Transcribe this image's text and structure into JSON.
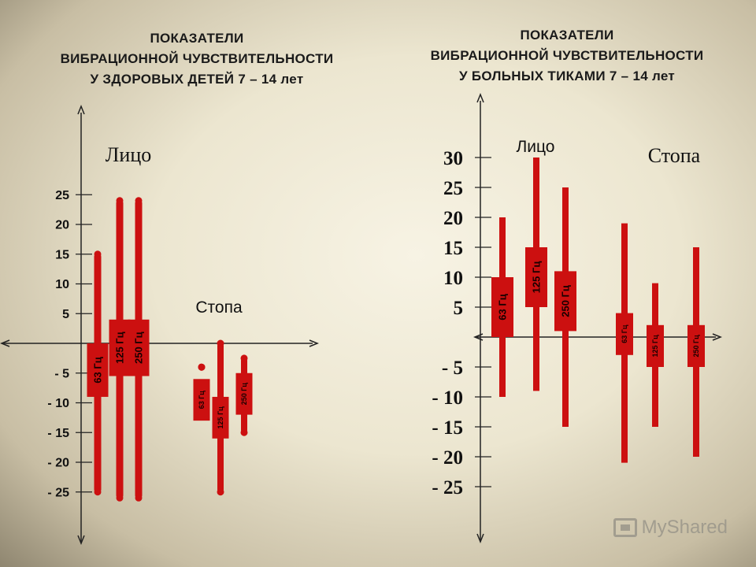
{
  "titles": {
    "left": [
      "ПОКАЗАТЕЛИ",
      "ВИБРАЦИОННОЙ ЧУВСТВИТЕЛЬНОСТИ",
      "У ЗДОРОВЫХ ДЕТЕЙ 7 – 14 лет"
    ],
    "right": [
      "ПОКАЗАТЕЛИ",
      "ВИБРАЦИОННОЙ ЧУВСТВИТЕЛЬНОСТИ",
      "У БОЛЬНЫХ ТИКАМИ 7 – 14 лет"
    ]
  },
  "colors": {
    "bar": "#cc1010",
    "axis": "#222222",
    "text": "#111111"
  },
  "watermark": "MyShared",
  "chart_data": [
    {
      "type": "range",
      "y_ticks": [
        25,
        20,
        15,
        10,
        5,
        -5,
        -10,
        -15,
        -20,
        -25
      ],
      "y_tick_labels": [
        "25",
        "20",
        "15",
        "10",
        "5",
        "- 5",
        "- 10",
        "- 15",
        "- 20",
        "- 25"
      ],
      "groups": [
        {
          "label": "Лицо",
          "series": [
            {
              "name": "63 Гц",
              "min": -25,
              "max": 15,
              "box_low": -9,
              "box_high": 0
            },
            {
              "name": "125 Гц",
              "min": -26,
              "max": 24,
              "box_low": -5.5,
              "box_high": 4
            },
            {
              "name": "250 Гц",
              "min": -26,
              "max": 24,
              "box_low": -5.5,
              "box_high": 4
            }
          ]
        },
        {
          "label": "Стопа",
          "series": [
            {
              "name": "63 Гц",
              "min": -4,
              "max": -4,
              "box_low": -13,
              "box_high": -6
            },
            {
              "name": "125 Гц",
              "min": -25,
              "max": 0,
              "box_low": -16,
              "box_high": -9
            },
            {
              "name": "250 Гц",
              "min": -15,
              "max": -2.5,
              "box_low": -12,
              "box_high": -5
            }
          ]
        }
      ]
    },
    {
      "type": "range",
      "y_ticks": [
        30,
        25,
        20,
        15,
        10,
        5,
        -5,
        -10,
        -15,
        -20,
        -25
      ],
      "y_tick_labels": [
        "30",
        "25",
        "20",
        "15",
        "10",
        "5",
        "- 5",
        "- 10",
        "- 15",
        "- 20",
        "- 25"
      ],
      "groups": [
        {
          "label": "Лицо",
          "series": [
            {
              "name": "63 Гц",
              "min": -10,
              "max": 20,
              "box_low": 0,
              "box_high": 10
            },
            {
              "name": "125 Гц",
              "min": -9,
              "max": 30,
              "box_low": 5,
              "box_high": 15
            },
            {
              "name": "250 Гц",
              "min": -15,
              "max": 25,
              "box_low": 1,
              "box_high": 11
            }
          ]
        },
        {
          "label": "Стопа",
          "series": [
            {
              "name": "63 Гц",
              "min": -21,
              "max": 19,
              "box_low": -3,
              "box_high": 4
            },
            {
              "name": "125 Гц",
              "min": -15,
              "max": 9,
              "box_low": -5,
              "box_high": 2
            },
            {
              "name": "250 Гц",
              "min": -20,
              "max": 15,
              "box_low": -5,
              "box_high": 2
            }
          ]
        }
      ]
    }
  ]
}
